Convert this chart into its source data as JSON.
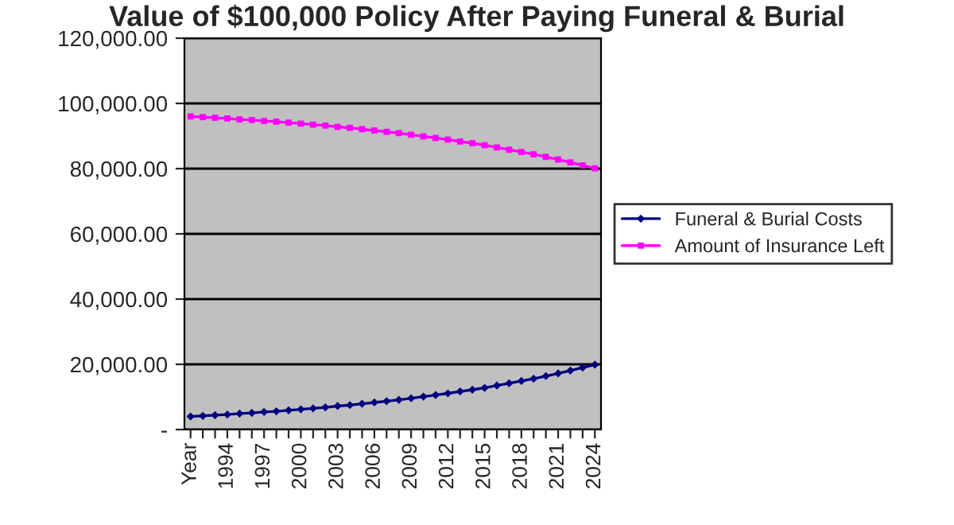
{
  "chart_data": {
    "type": "line",
    "title": "Value of $100,000 Policy After Paying Funeral & Burial",
    "categories": [
      "Year",
      null,
      null,
      "1994",
      null,
      null,
      "1997",
      null,
      null,
      "2000",
      null,
      null,
      "2003",
      null,
      null,
      "2006",
      null,
      null,
      "2009",
      null,
      null,
      "2012",
      null,
      null,
      "2015",
      null,
      null,
      "2018",
      null,
      null,
      "2021",
      null,
      null,
      "2024"
    ],
    "series": [
      {
        "name": "Funeral & Burial Costs",
        "color": "#000080",
        "marker": "diamond",
        "values": [
          4000,
          4200,
          4400,
          4600,
          4900,
          5100,
          5400,
          5600,
          5900,
          6200,
          6500,
          6800,
          7200,
          7500,
          7900,
          8300,
          8700,
          9100,
          9600,
          10100,
          10600,
          11100,
          11700,
          12200,
          12800,
          13500,
          14200,
          14900,
          15600,
          16400,
          17200,
          18100,
          19000,
          19900
        ]
      },
      {
        "name": "Amount of Insurance Left",
        "color": "#ff00ff",
        "marker": "square",
        "values": [
          96000,
          95800,
          95600,
          95400,
          95100,
          94900,
          94600,
          94400,
          94100,
          93800,
          93500,
          93200,
          92800,
          92500,
          92100,
          91700,
          91300,
          90900,
          90400,
          89900,
          89400,
          88900,
          88300,
          87800,
          87200,
          86500,
          85800,
          85100,
          84400,
          83600,
          82800,
          81900,
          81000,
          80100
        ]
      }
    ],
    "ylim": [
      0,
      120000
    ],
    "yticks": [
      {
        "value": 0,
        "label": "-"
      },
      {
        "value": 20000,
        "label": "20,000.00"
      },
      {
        "value": 40000,
        "label": "40,000.00"
      },
      {
        "value": 60000,
        "label": "60,000.00"
      },
      {
        "value": 80000,
        "label": "80,000.00"
      },
      {
        "value": 100000,
        "label": "100,000.00"
      },
      {
        "value": 120000,
        "label": "120,000.00"
      }
    ],
    "grid": "y",
    "legend": "right"
  }
}
